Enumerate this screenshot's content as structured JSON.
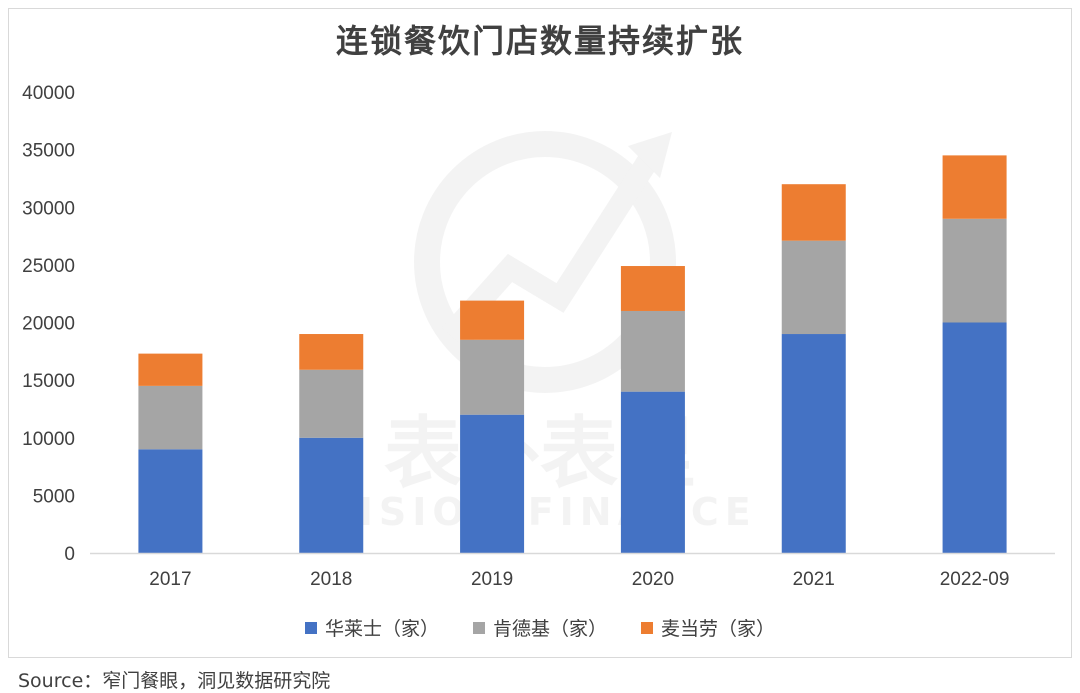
{
  "chart_data": {
    "type": "bar",
    "stacked": true,
    "title": "连锁餐饮门店数量持续扩张",
    "categories": [
      "2017",
      "2018",
      "2019",
      "2020",
      "2021",
      "2022-09"
    ],
    "series": [
      {
        "name": "华莱士（家）",
        "color": "#4472c4",
        "values": [
          9000,
          10000,
          12000,
          14000,
          19000,
          20000
        ]
      },
      {
        "name": "肯德基（家）",
        "color": "#a5a5a5",
        "values": [
          5500,
          5900,
          6500,
          7000,
          8100,
          9000
        ]
      },
      {
        "name": "麦当劳（家）",
        "color": "#ed7d31",
        "values": [
          2800,
          3100,
          3400,
          3900,
          4900,
          5500
        ]
      }
    ],
    "ylim": [
      0,
      40000
    ],
    "yticks": [
      "0",
      "5000",
      "10000",
      "15000",
      "20000",
      "25000",
      "30000",
      "35000",
      "40000"
    ],
    "grid": false,
    "legend_position": "bottom"
  },
  "watermark": {
    "cn": "表外表里",
    "en": "VISION FINANCE"
  },
  "source": "Source：窄门餐眼，洞见数据研究院"
}
